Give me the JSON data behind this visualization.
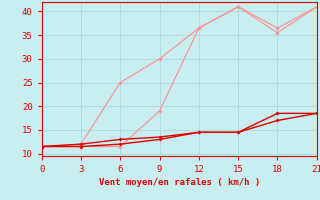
{
  "bg_color": "#c8eef0",
  "xlabel": "Vent moyen/en rafales ( km/h )",
  "x_ticks": [
    0,
    3,
    6,
    9,
    12,
    15,
    18,
    21
  ],
  "ylim": [
    9.5,
    42
  ],
  "xlim": [
    0,
    21
  ],
  "yticks": [
    10,
    15,
    20,
    25,
    30,
    35,
    40
  ],
  "line1_x": [
    0,
    3,
    6,
    9,
    12,
    15,
    18,
    21
  ],
  "line1_y": [
    11.5,
    11.5,
    12.0,
    13.0,
    14.5,
    14.5,
    18.5,
    18.5
  ],
  "line2_x": [
    0,
    3,
    6,
    9,
    12,
    15,
    18,
    21
  ],
  "line2_y": [
    11.5,
    12.0,
    13.0,
    13.5,
    14.5,
    14.5,
    17.0,
    18.5
  ],
  "line3_x": [
    0,
    3,
    6,
    9,
    12,
    15,
    18,
    21
  ],
  "line3_y": [
    11.5,
    11.5,
    11.5,
    19.0,
    36.5,
    41.0,
    36.5,
    41.0
  ],
  "line4_x": [
    0,
    3,
    6,
    9,
    12,
    15,
    18,
    21
  ],
  "line4_y": [
    11.5,
    12.0,
    25.0,
    30.0,
    36.5,
    41.0,
    35.5,
    41.0
  ],
  "color_dark_red": "#dd0000",
  "color_light_red": "#ff9090",
  "grid_color": "#b0dde0"
}
